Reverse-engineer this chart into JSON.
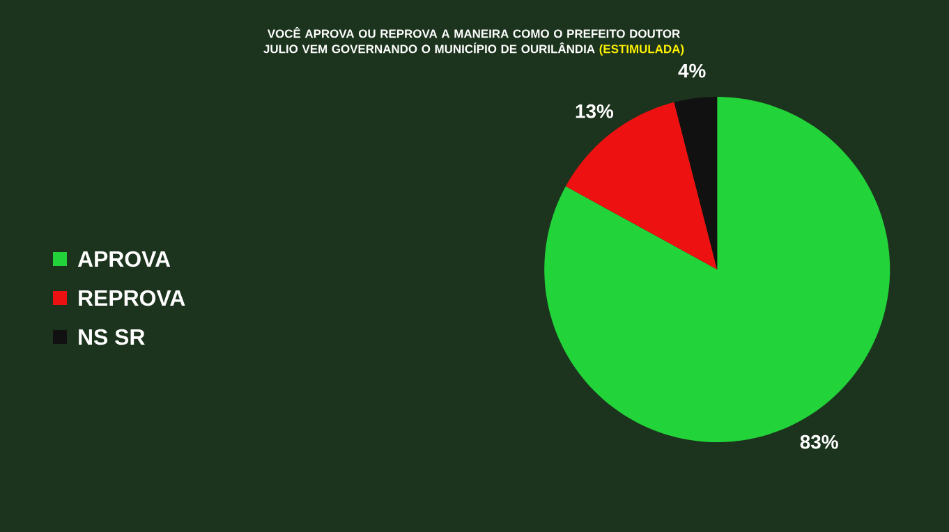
{
  "chart_data": {
    "type": "pie",
    "title": "VOCÊ APROVA OU REPROVA A MANEIRA COMO O PREFEITO DOUTOR JULIO VEM GOVERNANDO O MUNICÍPIO DE OURILÂNDIA",
    "subtitle": "(ESTIMULADA)",
    "categories": [
      "APROVA",
      "REPROVA",
      "NS SR"
    ],
    "values": [
      83,
      13,
      4
    ],
    "value_labels": [
      "83%",
      "13%",
      "4%"
    ],
    "colors": [
      "#22d43a",
      "#ee1111",
      "#111111"
    ],
    "legend": "left"
  }
}
